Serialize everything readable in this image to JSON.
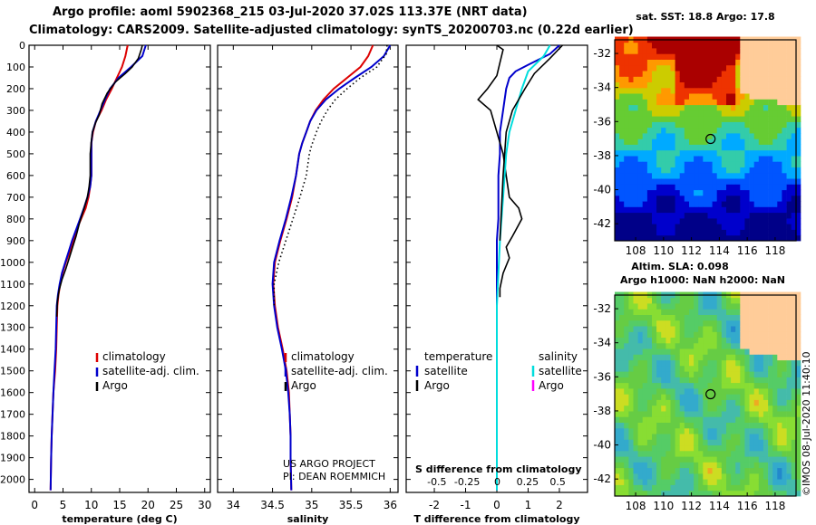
{
  "header": {
    "title_line1": "Argo profile: aoml 5902368_215 03-Jul-2020 37.02S 113.37E (NRT data)",
    "title_line2": "Climatology: CARS2009. Satellite-adjusted climatology: synTS_20200703.nc (0.22d earlier)"
  },
  "colors": {
    "climatology": "#dd0000",
    "satellite": "#0000cc",
    "argo": "#000000",
    "salinity_sat": "#00dddd",
    "salinity_argo": "#ff00ff"
  },
  "chart_data": [
    {
      "id": "temperature",
      "type": "line",
      "xlabel": "temperature (deg C)",
      "xlim": [
        -1,
        31
      ],
      "xticks": [
        0,
        5,
        10,
        15,
        20,
        25,
        30
      ],
      "ylim": [
        2060,
        0
      ],
      "yticks": [
        0,
        100,
        200,
        300,
        400,
        500,
        600,
        700,
        800,
        900,
        1000,
        1100,
        1200,
        1300,
        1400,
        1500,
        1600,
        1700,
        1800,
        1900,
        2000
      ],
      "legend": [
        "climatology",
        "satellite-adj. clim.",
        "Argo"
      ],
      "series": [
        {
          "name": "climatology",
          "color": "#dd0000",
          "points": [
            [
              16.4,
              0
            ],
            [
              16.0,
              50
            ],
            [
              15.4,
              100
            ],
            [
              14.5,
              150
            ],
            [
              13.6,
              200
            ],
            [
              12.6,
              250
            ],
            [
              11.8,
              300
            ],
            [
              10.8,
              350
            ],
            [
              10.3,
              400
            ],
            [
              10.0,
              450
            ],
            [
              10.0,
              500
            ],
            [
              10.0,
              550
            ],
            [
              10.0,
              600
            ],
            [
              9.8,
              650
            ],
            [
              9.5,
              700
            ],
            [
              9.0,
              750
            ],
            [
              8.2,
              800
            ],
            [
              7.4,
              850
            ],
            [
              6.8,
              900
            ],
            [
              6.2,
              950
            ],
            [
              5.5,
              1000
            ],
            [
              4.9,
              1050
            ],
            [
              4.5,
              1100
            ],
            [
              4.2,
              1150
            ],
            [
              4.0,
              1200
            ],
            [
              3.9,
              1300
            ],
            [
              3.8,
              1400
            ],
            [
              3.6,
              1500
            ],
            [
              3.3,
              1600
            ],
            [
              3.0,
              1800
            ],
            [
              2.9,
              1900
            ],
            [
              2.8,
              2050
            ]
          ]
        },
        {
          "name": "satellite-adj. clim.",
          "color": "#0000cc",
          "points": [
            [
              19.6,
              0
            ],
            [
              19.0,
              50
            ],
            [
              17.0,
              100
            ],
            [
              14.8,
              150
            ],
            [
              13.3,
              200
            ],
            [
              12.4,
              250
            ],
            [
              11.6,
              300
            ],
            [
              10.8,
              350
            ],
            [
              10.2,
              400
            ],
            [
              10.0,
              450
            ],
            [
              10.0,
              500
            ],
            [
              10.0,
              550
            ],
            [
              10.0,
              600
            ],
            [
              9.8,
              650
            ],
            [
              9.3,
              700
            ],
            [
              8.7,
              750
            ],
            [
              8.0,
              800
            ],
            [
              7.3,
              850
            ],
            [
              6.6,
              900
            ],
            [
              6.0,
              950
            ],
            [
              5.4,
              1000
            ],
            [
              4.8,
              1050
            ],
            [
              4.4,
              1100
            ],
            [
              4.1,
              1150
            ],
            [
              3.9,
              1200
            ],
            [
              3.8,
              1300
            ],
            [
              3.7,
              1400
            ],
            [
              3.5,
              1500
            ],
            [
              3.3,
              1600
            ],
            [
              3.0,
              1800
            ],
            [
              2.9,
              1900
            ],
            [
              2.8,
              2050
            ]
          ]
        },
        {
          "name": "Argo",
          "color": "#000000",
          "points": [
            [
              19.0,
              0
            ],
            [
              18.8,
              20
            ],
            [
              18.3,
              60
            ],
            [
              17.2,
              100
            ],
            [
              16.0,
              130
            ],
            [
              14.2,
              170
            ],
            [
              12.8,
              220
            ],
            [
              11.9,
              270
            ],
            [
              11.4,
              320
            ],
            [
              10.7,
              360
            ],
            [
              10.2,
              400
            ],
            [
              10.0,
              440
            ],
            [
              9.8,
              500
            ],
            [
              9.8,
              600
            ],
            [
              9.6,
              650
            ],
            [
              9.3,
              700
            ],
            [
              8.6,
              760
            ],
            [
              7.9,
              820
            ],
            [
              7.3,
              880
            ],
            [
              6.7,
              930
            ],
            [
              6.1,
              980
            ],
            [
              5.5,
              1030
            ],
            [
              4.8,
              1080
            ],
            [
              4.3,
              1130
            ],
            [
              4.0,
              1180
            ],
            [
              3.9,
              1250
            ]
          ]
        }
      ]
    },
    {
      "id": "salinity",
      "type": "line",
      "xlabel": "salinity",
      "xlim": [
        33.8,
        36.1
      ],
      "xticks": [
        34,
        34.5,
        35,
        35.5,
        36
      ],
      "ylim": [
        2060,
        0
      ],
      "legend": [
        "climatology",
        "satellite-adj. clim.",
        "Argo"
      ],
      "credit": [
        "US ARGO PROJECT",
        "PI: DEAN ROEMMICH"
      ],
      "series": [
        {
          "name": "climatology",
          "color": "#dd0000",
          "points": [
            [
              35.78,
              0
            ],
            [
              35.72,
              50
            ],
            [
              35.62,
              100
            ],
            [
              35.45,
              150
            ],
            [
              35.28,
              200
            ],
            [
              35.15,
              250
            ],
            [
              35.05,
              300
            ],
            [
              34.98,
              350
            ],
            [
              34.93,
              400
            ],
            [
              34.88,
              450
            ],
            [
              34.84,
              500
            ],
            [
              34.8,
              600
            ],
            [
              34.75,
              700
            ],
            [
              34.68,
              800
            ],
            [
              34.6,
              900
            ],
            [
              34.53,
              1000
            ],
            [
              34.51,
              1100
            ],
            [
              34.53,
              1200
            ],
            [
              34.57,
              1300
            ],
            [
              34.63,
              1400
            ],
            [
              34.68,
              1500
            ],
            [
              34.71,
              1600
            ],
            [
              34.72,
              1700
            ],
            [
              34.73,
              1800
            ],
            [
              34.73,
              1900
            ],
            [
              34.74,
              2050
            ]
          ]
        },
        {
          "name": "satellite-adj. clim.",
          "color": "#0000cc",
          "points": [
            [
              36.0,
              0
            ],
            [
              35.92,
              50
            ],
            [
              35.76,
              100
            ],
            [
              35.55,
              150
            ],
            [
              35.35,
              200
            ],
            [
              35.18,
              250
            ],
            [
              35.06,
              300
            ],
            [
              34.98,
              350
            ],
            [
              34.93,
              400
            ],
            [
              34.88,
              450
            ],
            [
              34.84,
              500
            ],
            [
              34.8,
              600
            ],
            [
              34.74,
              700
            ],
            [
              34.67,
              800
            ],
            [
              34.59,
              900
            ],
            [
              34.52,
              1000
            ],
            [
              34.5,
              1100
            ],
            [
              34.52,
              1200
            ],
            [
              34.56,
              1300
            ],
            [
              34.62,
              1400
            ],
            [
              34.67,
              1500
            ],
            [
              34.7,
              1600
            ],
            [
              34.72,
              1700
            ],
            [
              34.73,
              1800
            ],
            [
              34.73,
              1900
            ],
            [
              34.74,
              2050
            ]
          ]
        },
        {
          "name": "Argo",
          "color": "#000000",
          "points": [
            [
              35.96,
              0
            ],
            [
              35.95,
              40
            ],
            [
              35.83,
              100
            ],
            [
              35.62,
              150
            ],
            [
              35.45,
              200
            ],
            [
              35.3,
              250
            ],
            [
              35.2,
              300
            ],
            [
              35.12,
              350
            ],
            [
              35.06,
              400
            ],
            [
              35.0,
              460
            ],
            [
              34.97,
              500
            ],
            [
              34.93,
              600
            ],
            [
              34.85,
              700
            ],
            [
              34.76,
              800
            ],
            [
              34.67,
              900
            ],
            [
              34.58,
              1000
            ],
            [
              34.52,
              1100
            ],
            [
              34.52,
              1200
            ]
          ]
        }
      ]
    },
    {
      "id": "difference",
      "type": "line",
      "xlabel": "T difference from climatology",
      "xlabel_top": "S difference from climatology",
      "xlim": [
        -2.9,
        2.9
      ],
      "xticks": [
        -2,
        -1,
        0,
        1,
        2
      ],
      "xticks_top": [
        -0.5,
        -0.25,
        0,
        0.25,
        0.5
      ],
      "legend_left": [
        "temperature",
        "satellite",
        "Argo"
      ],
      "legend_right": [
        "salinity",
        "satellite",
        "Argo"
      ],
      "series": [
        {
          "name": "T satellite",
          "color": "#0000cc",
          "points": [
            [
              2.0,
              0
            ],
            [
              1.7,
              40
            ],
            [
              1.0,
              90
            ],
            [
              0.6,
              120
            ],
            [
              0.4,
              150
            ],
            [
              0.3,
              200
            ],
            [
              0.2,
              300
            ],
            [
              0.1,
              400
            ],
            [
              0.1,
              500
            ],
            [
              0.05,
              600
            ],
            [
              0.05,
              800
            ],
            [
              0.0,
              900
            ],
            [
              0.0,
              1100
            ],
            [
              0.0,
              1300
            ],
            [
              0.0,
              1600
            ],
            [
              0.0,
              2050
            ]
          ]
        },
        {
          "name": "T Argo",
          "color": "#000000",
          "points": [
            [
              0.0,
              0
            ],
            [
              0.2,
              20
            ],
            [
              0.1,
              80
            ],
            [
              0.0,
              140
            ],
            [
              -0.3,
              200
            ],
            [
              -0.6,
              250
            ],
            [
              -0.2,
              300
            ],
            [
              0.0,
              400
            ],
            [
              0.2,
              500
            ],
            [
              0.3,
              600
            ],
            [
              0.4,
              700
            ],
            [
              0.7,
              750
            ],
            [
              0.8,
              800
            ],
            [
              0.5,
              880
            ],
            [
              0.3,
              930
            ],
            [
              0.4,
              980
            ],
            [
              0.2,
              1050
            ],
            [
              0.1,
              1120
            ],
            [
              0.1,
              1160
            ]
          ]
        },
        {
          "name": "S satellite",
          "color": "#00dddd",
          "points": [
            [
              1.7,
              0
            ],
            [
              1.5,
              50
            ],
            [
              1.0,
              120
            ],
            [
              0.8,
              200
            ],
            [
              0.6,
              300
            ],
            [
              0.4,
              400
            ],
            [
              0.3,
              500
            ],
            [
              0.2,
              700
            ],
            [
              0.1,
              900
            ],
            [
              0.0,
              1200
            ],
            [
              0.0,
              1500
            ],
            [
              0.0,
              2050
            ]
          ]
        },
        {
          "name": "S Argo",
          "color": "#000000",
          "points": [
            [
              2.1,
              0
            ],
            [
              1.7,
              60
            ],
            [
              1.2,
              130
            ],
            [
              0.9,
              200
            ],
            [
              0.5,
              300
            ],
            [
              0.3,
              400
            ],
            [
              0.2,
              600
            ],
            [
              0.1,
              900
            ]
          ]
        }
      ]
    }
  ],
  "maps": [
    {
      "id": "sst_map",
      "title": "sat. SST: 18.8 Argo: 17.8",
      "xticks": [
        108,
        110,
        112,
        114,
        116,
        118
      ],
      "yticks": [
        -32,
        -34,
        -36,
        -38,
        -40,
        -42
      ]
    },
    {
      "id": "sla_map",
      "title_line1": "Altim. SLA: 0.098",
      "title_line2": "Argo h1000: NaN h2000: NaN",
      "xticks": [
        108,
        110,
        112,
        114,
        116,
        118
      ],
      "yticks": [
        -32,
        -34,
        -36,
        -38,
        -40,
        -42
      ],
      "watermark": "©IMOS 08-Jul-2020 11:40:10"
    }
  ],
  "argo_position": {
    "lon": 113.37,
    "lat": -37.02
  }
}
